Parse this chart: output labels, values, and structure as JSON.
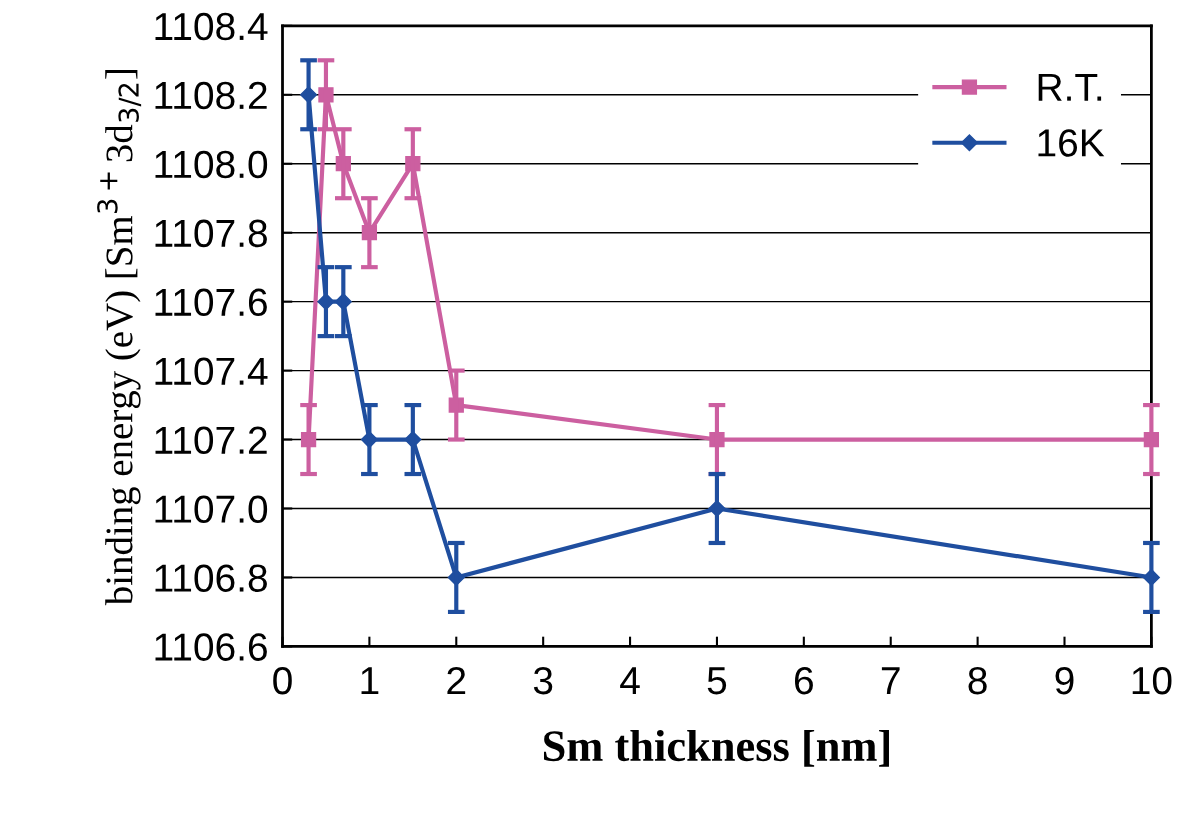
{
  "chart_data": {
    "type": "line",
    "xlabel": "Sm thickness [nm]",
    "ylabel": "binding energy (eV) [Sm$^{3+}$3d$_{3/2}$]",
    "xlim": [
      0,
      10
    ],
    "xticks": [
      0,
      1,
      2,
      3,
      4,
      5,
      6,
      7,
      8,
      9,
      10
    ],
    "ylim": [
      1106.6,
      1108.4
    ],
    "yticks": [
      1106.6,
      1106.8,
      {
        "value": 1107,
        "label": "1107.0"
      },
      1107.2,
      1107.4,
      1107.6,
      1107.8,
      {
        "value": 1108,
        "label": "1108.0"
      },
      1108.2,
      1108.4
    ],
    "grid": "y",
    "legend": "top right",
    "line_style": "solid",
    "x": [
      0.3,
      0.5,
      0.7,
      1,
      1.5,
      2,
      5,
      10
    ],
    "series": [
      {
        "name": "R.T.",
        "color": "#cc5fa0",
        "marker": "square",
        "values": [
          1107.2,
          1108.2,
          1108.0,
          1107.8,
          1108.0,
          1107.3,
          1107.2,
          1107.2
        ],
        "errors": [
          0.1,
          0.1,
          0.1,
          0.1,
          0.1,
          0.1,
          0.1,
          0.1
        ]
      },
      {
        "name": "16K",
        "color": "#1f4e9f",
        "marker": "diamond",
        "values": [
          1108.2,
          1107.6,
          1107.6,
          1107.2,
          1107.2,
          1106.8,
          1107.0,
          1106.8
        ],
        "errors": [
          0.1,
          0.1,
          0.1,
          0.1,
          0.1,
          0.1,
          0.1,
          0.1
        ]
      }
    ]
  }
}
